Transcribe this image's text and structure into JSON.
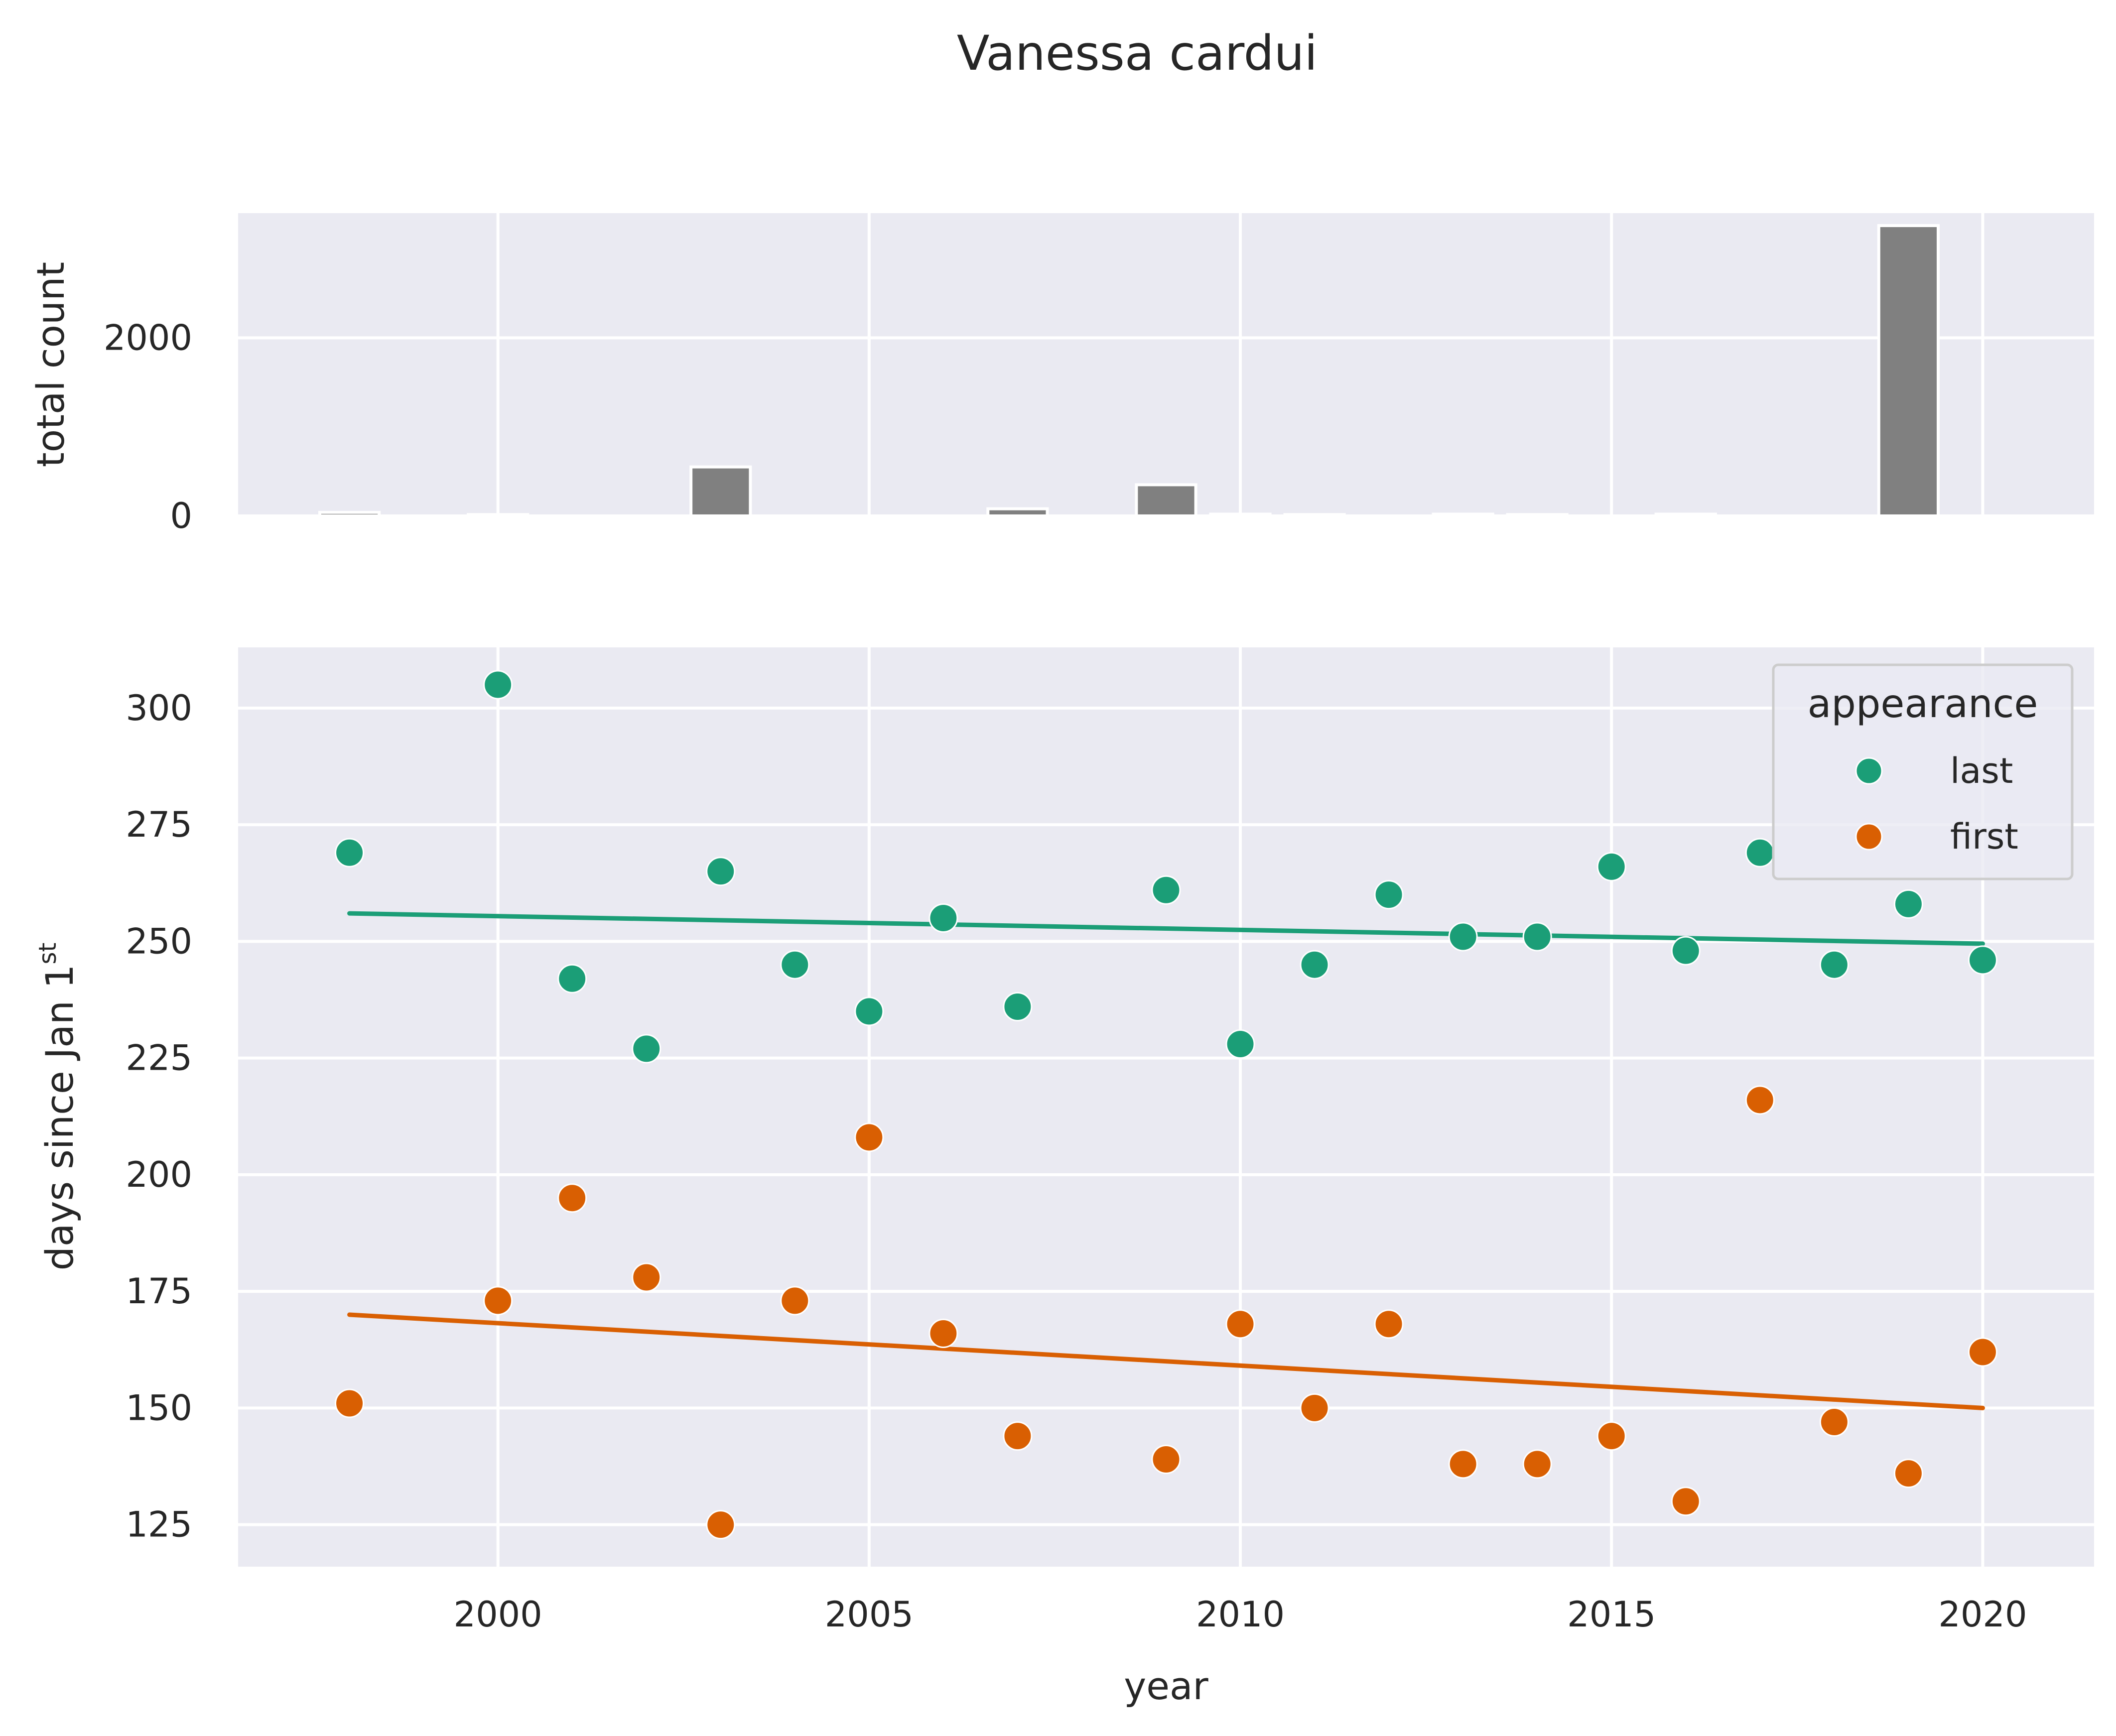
{
  "title": "Vanessa cardui",
  "chart_data": [
    {
      "type": "bar",
      "panel": "top",
      "ylabel": "total count",
      "xlabel": "",
      "xlim": [
        1996.5,
        2021.5
      ],
      "ylim": [
        0,
        3400
      ],
      "yticks": [
        0,
        2000
      ],
      "xticks": [
        2000,
        2005,
        2010,
        2015,
        2020
      ],
      "grid": true,
      "bar_color": "#808080",
      "categories": [
        1998,
        2000,
        2003,
        2007,
        2009,
        2010,
        2011,
        2013,
        2014,
        2016,
        2019
      ],
      "values": [
        40,
        15,
        550,
        80,
        350,
        20,
        15,
        20,
        15,
        20,
        3260
      ]
    },
    {
      "type": "scatter",
      "panel": "bottom",
      "xlabel": "year",
      "ylabel": "days since Jan 1",
      "ylabel_super": "st",
      "xlim": [
        1996.5,
        2021.5
      ],
      "ylim": [
        116,
        313
      ],
      "yticks": [
        125,
        150,
        175,
        200,
        225,
        250,
        275,
        300
      ],
      "xticks": [
        2000,
        2005,
        2010,
        2015,
        2020
      ],
      "grid": true,
      "legend": {
        "title": "appearance",
        "placement": "top-right"
      },
      "series": [
        {
          "name": "last",
          "color": "#1b9e77",
          "x": [
            1998,
            2000,
            2001,
            2002,
            2003,
            2004,
            2005,
            2006,
            2007,
            2009,
            2010,
            2011,
            2012,
            2013,
            2014,
            2015,
            2016,
            2017,
            2018,
            2019,
            2020
          ],
          "y": [
            269,
            305,
            242,
            227,
            265,
            245,
            235,
            255,
            236,
            261,
            228,
            245,
            260,
            251,
            251,
            266,
            248,
            269,
            245,
            258,
            246
          ],
          "trend": {
            "x": [
              1998,
              2020
            ],
            "y": [
              256,
              249.5
            ]
          }
        },
        {
          "name": "first",
          "color": "#d95f02",
          "x": [
            1998,
            2000,
            2001,
            2002,
            2003,
            2004,
            2005,
            2006,
            2007,
            2009,
            2010,
            2011,
            2012,
            2013,
            2014,
            2015,
            2016,
            2017,
            2018,
            2019,
            2020
          ],
          "y": [
            151,
            173,
            195,
            178,
            125,
            173,
            208,
            166,
            144,
            139,
            168,
            150,
            168,
            138,
            138,
            144,
            130,
            216,
            147,
            136,
            162
          ],
          "trend": {
            "x": [
              1998,
              2020
            ],
            "y": [
              170,
              150
            ]
          }
        }
      ]
    }
  ]
}
